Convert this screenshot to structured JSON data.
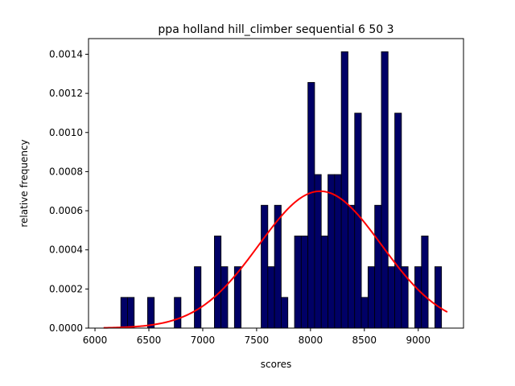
{
  "chart_data": {
    "type": "bar",
    "title": "ppa holland hill_climber sequential 6 50 3",
    "xlabel": "scores",
    "ylabel": "relative frequency",
    "xlim": [
      5940,
      9420
    ],
    "ylim": [
      0,
      0.00148
    ],
    "x_ticks": [
      6000,
      6500,
      7000,
      7500,
      8000,
      8500,
      9000
    ],
    "y_ticks": [
      0.0,
      0.0002,
      0.0004,
      0.0006,
      0.0008,
      0.001,
      0.0012,
      0.0014
    ],
    "y_tick_labels": [
      "0.0000",
      "0.0002",
      "0.0004",
      "0.0006",
      "0.0008",
      "0.0010",
      "0.0012",
      "0.0014"
    ],
    "bin_width": 62,
    "bar_color": "#000066",
    "curve_color": "#ff0000",
    "bins": [
      {
        "x": 6240,
        "value": 0.000157
      },
      {
        "x": 6302,
        "value": 0.000157
      },
      {
        "x": 6488,
        "value": 0.000157
      },
      {
        "x": 6736,
        "value": 0.000157
      },
      {
        "x": 6922,
        "value": 0.000314
      },
      {
        "x": 7108,
        "value": 0.000471
      },
      {
        "x": 7170,
        "value": 0.000314
      },
      {
        "x": 7294,
        "value": 0.000314
      },
      {
        "x": 7542,
        "value": 0.000628
      },
      {
        "x": 7604,
        "value": 0.000314
      },
      {
        "x": 7666,
        "value": 0.000628
      },
      {
        "x": 7728,
        "value": 0.000157
      },
      {
        "x": 7852,
        "value": 0.000471
      },
      {
        "x": 7914,
        "value": 0.000471
      },
      {
        "x": 7976,
        "value": 0.001256
      },
      {
        "x": 8038,
        "value": 0.000785
      },
      {
        "x": 8100,
        "value": 0.000471
      },
      {
        "x": 8162,
        "value": 0.000785
      },
      {
        "x": 8224,
        "value": 0.000785
      },
      {
        "x": 8286,
        "value": 0.001413
      },
      {
        "x": 8348,
        "value": 0.000628
      },
      {
        "x": 8410,
        "value": 0.001099
      },
      {
        "x": 8472,
        "value": 0.000157
      },
      {
        "x": 8534,
        "value": 0.000314
      },
      {
        "x": 8596,
        "value": 0.000628
      },
      {
        "x": 8658,
        "value": 0.001413
      },
      {
        "x": 8720,
        "value": 0.000314
      },
      {
        "x": 8782,
        "value": 0.001099
      },
      {
        "x": 8844,
        "value": 0.000314
      },
      {
        "x": 8968,
        "value": 0.000314
      },
      {
        "x": 9030,
        "value": 0.000471
      },
      {
        "x": 9154,
        "value": 0.000314
      }
    ],
    "fit_curve": {
      "type": "normal",
      "mean": 8090,
      "std": 570,
      "x_start": 6080,
      "x_end": 9270
    }
  }
}
